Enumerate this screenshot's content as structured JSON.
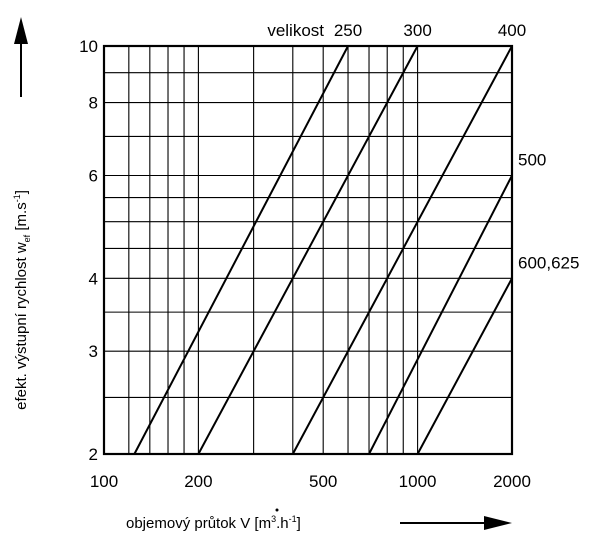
{
  "chart_data": {
    "type": "line",
    "x_scale": "log",
    "y_scale": "log",
    "xlim": [
      100,
      2000
    ],
    "ylim": [
      2,
      10
    ],
    "grid": true,
    "x_ticks": [
      {
        "value": 100,
        "label": "100"
      },
      {
        "value": 200,
        "label": "200"
      },
      {
        "value": 500,
        "label": "500"
      },
      {
        "value": 1000,
        "label": "1000"
      },
      {
        "value": 2000,
        "label": "2000"
      }
    ],
    "y_ticks": [
      {
        "value": 2,
        "label": "2"
      },
      {
        "value": 3,
        "label": "3"
      },
      {
        "value": 4,
        "label": "4"
      },
      {
        "value": 6,
        "label": "6"
      },
      {
        "value": 8,
        "label": "8"
      },
      {
        "value": 10,
        "label": "10"
      }
    ],
    "x_grid": [
      100,
      120,
      140,
      160,
      180,
      200,
      300,
      400,
      500,
      600,
      700,
      800,
      900,
      1000,
      2000
    ],
    "y_grid": [
      2,
      2.5,
      3,
      3.5,
      4,
      4.5,
      5,
      5.5,
      6,
      7,
      8,
      9,
      10
    ],
    "legend_title": "velikost",
    "series": [
      {
        "name": "250",
        "x": [
          125,
          600
        ],
        "y": [
          2,
          10
        ]
      },
      {
        "name": "300",
        "x": [
          200,
          1000
        ],
        "y": [
          2,
          10
        ]
      },
      {
        "name": "400",
        "x": [
          400,
          2000
        ],
        "y": [
          2,
          10
        ]
      },
      {
        "name": "500",
        "x": [
          700,
          2000
        ],
        "y": [
          2,
          6
        ]
      },
      {
        "name": "600,625",
        "x": [
          1000,
          2000
        ],
        "y": [
          2,
          4
        ]
      }
    ],
    "ylabel": {
      "main": "efekt. výstupní rychlost w",
      "subscript": "ef",
      "unit": "[m.s",
      "unit_exp": "-1",
      "unit_close": "]"
    },
    "xlabel": {
      "main": "objemový průtok V",
      "unit": "[m",
      "unit_exp1": "3",
      "unit_mid": ".h",
      "unit_exp2": "-1",
      "unit_close": "]"
    }
  }
}
